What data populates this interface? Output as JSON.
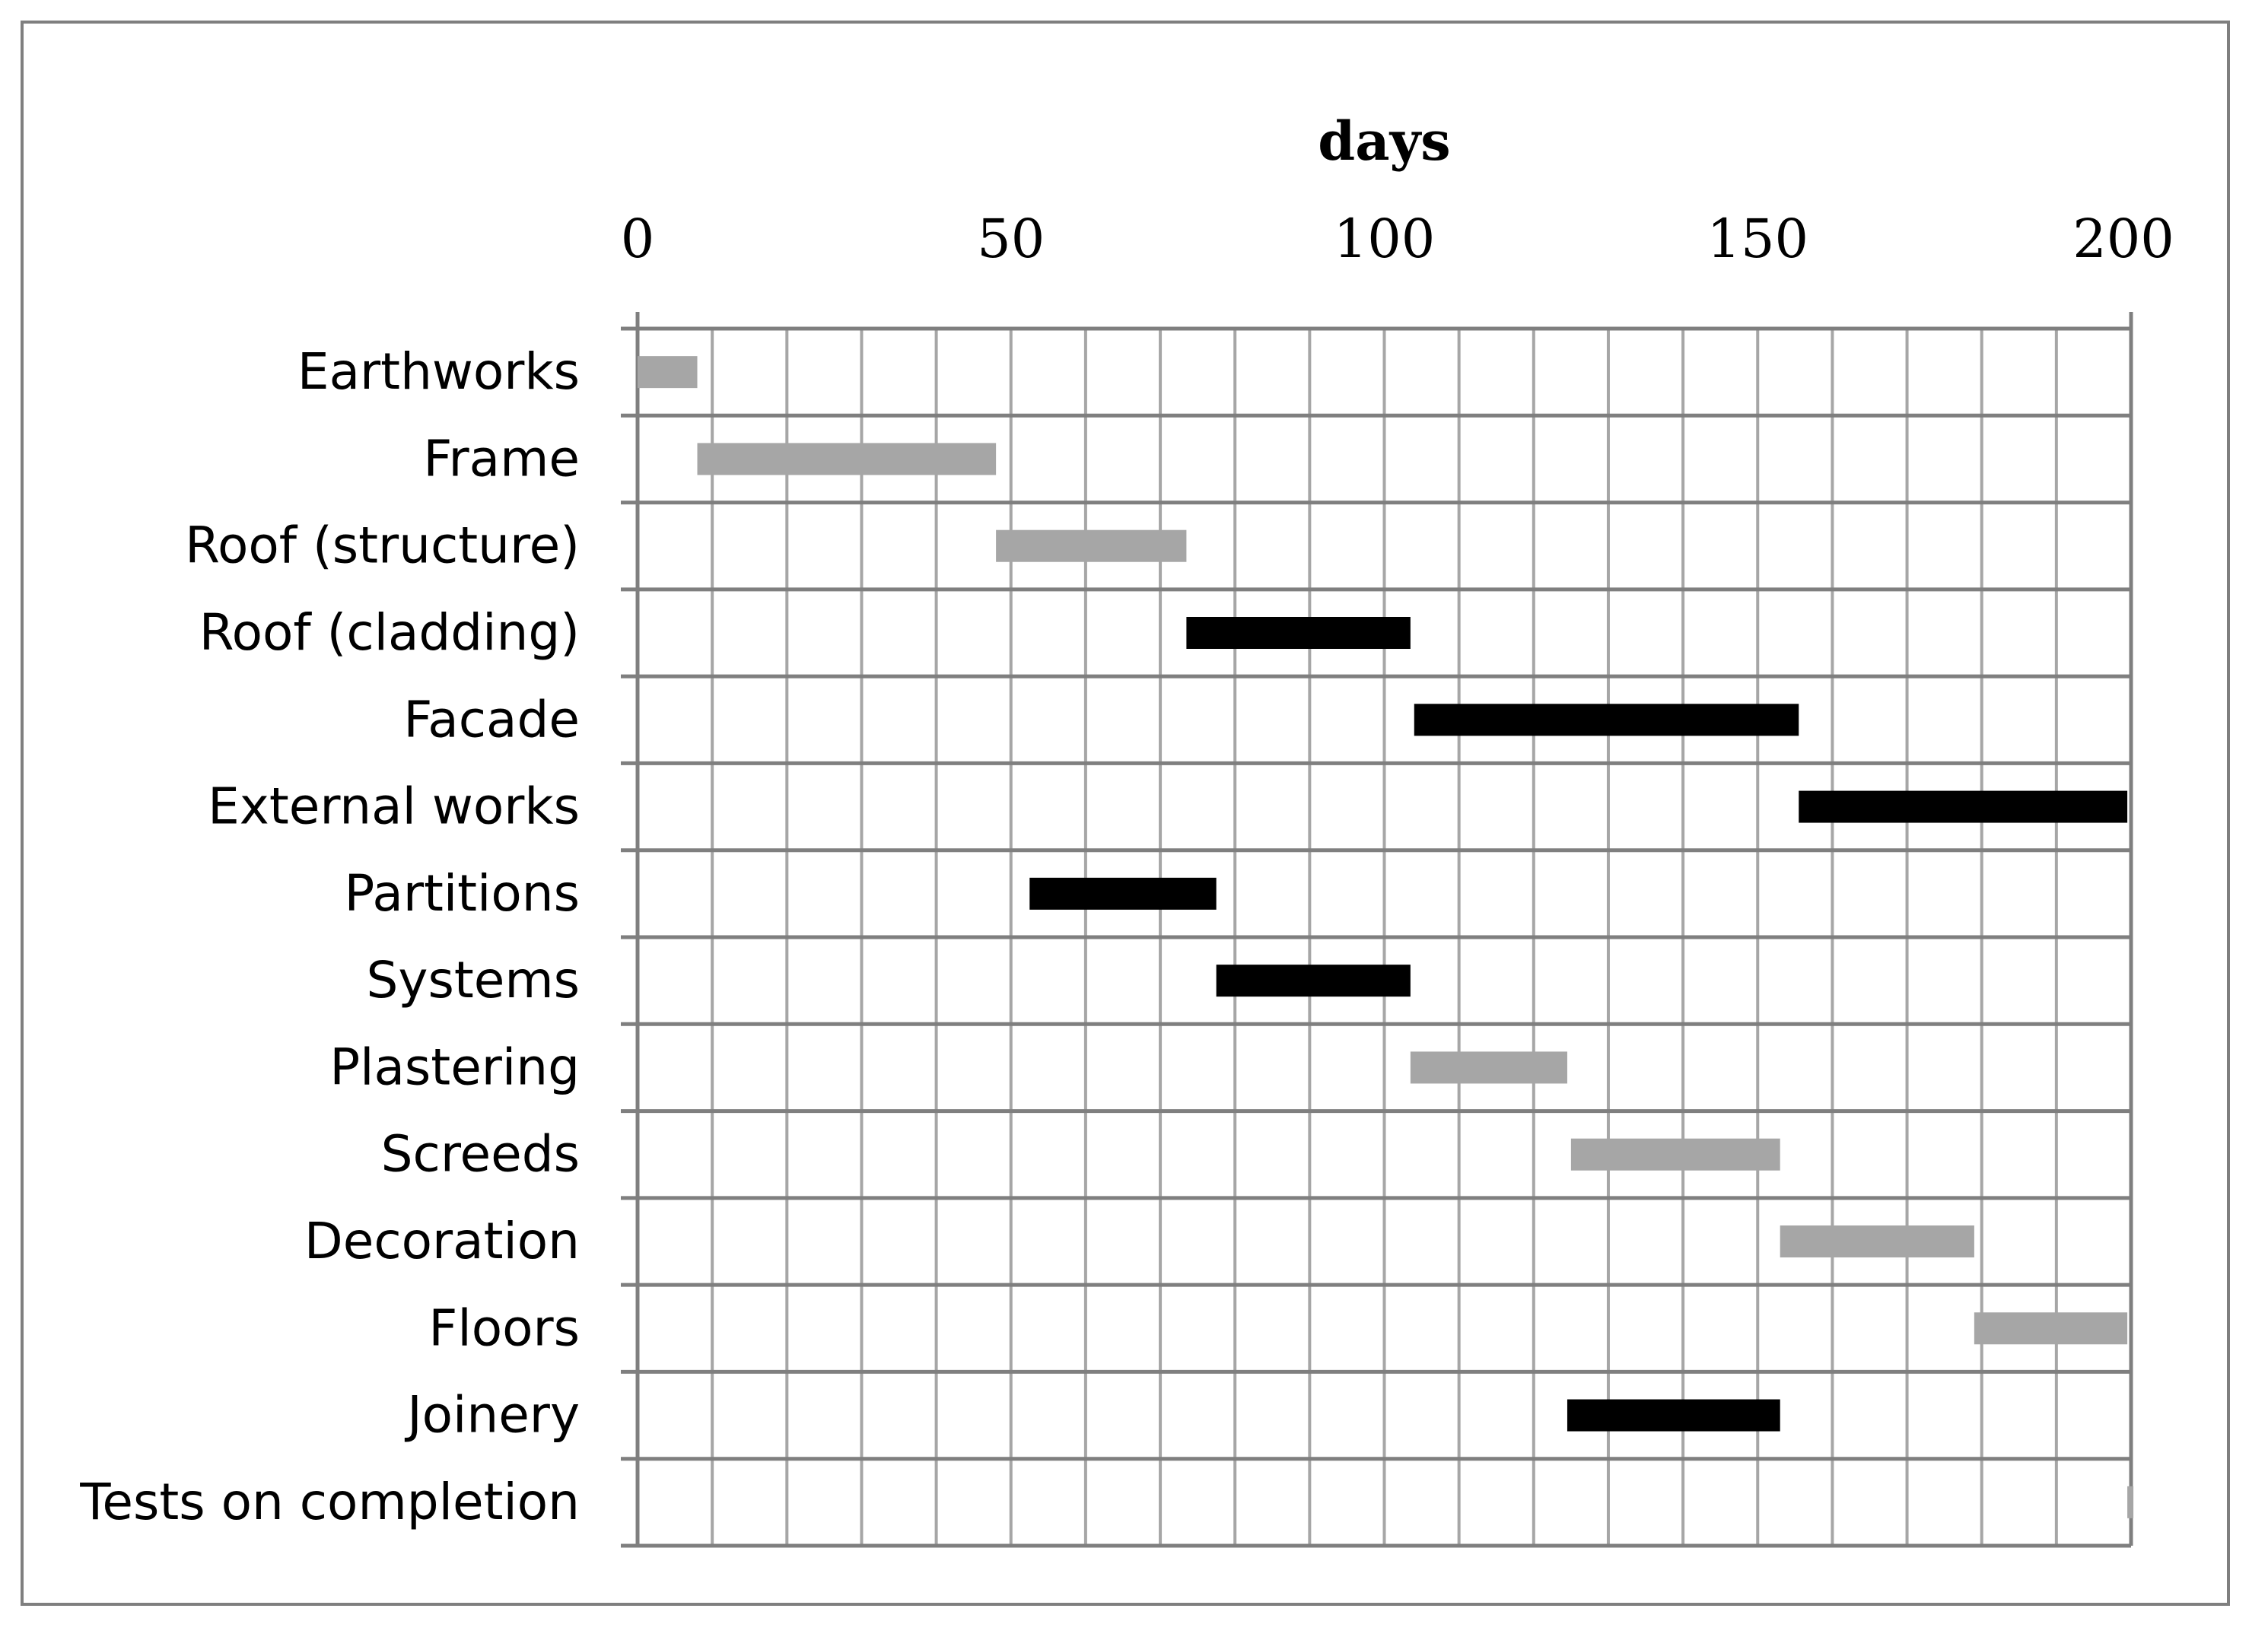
{
  "chart_data": {
    "type": "bar",
    "subtype": "gantt",
    "xlabel": "days",
    "xlim": [
      0,
      200
    ],
    "x_ticks": [
      0,
      50,
      100,
      150,
      200
    ],
    "x_minor_step": 10,
    "grid": true,
    "x_axis_position": "top",
    "legend": "none",
    "categories": [
      "Earthworks",
      "Frame",
      "Roof (structure)",
      "Roof (cladding)",
      "Facade",
      "External works",
      "Partitions",
      "Systems",
      "Plastering",
      "Screeds",
      "Decoration",
      "Floors",
      "Joinery",
      "Tests on completion"
    ],
    "tasks": [
      {
        "name": "Earthworks",
        "start": 0,
        "end": 8,
        "color": "#a6a6a6"
      },
      {
        "name": "Frame",
        "start": 8,
        "end": 48,
        "color": "#a6a6a6"
      },
      {
        "name": "Roof (structure)",
        "start": 48,
        "end": 73.5,
        "color": "#a6a6a6"
      },
      {
        "name": "Roof (cladding)",
        "start": 73.5,
        "end": 103.5,
        "color": "#000000"
      },
      {
        "name": "Facade",
        "start": 104,
        "end": 155.5,
        "color": "#000000"
      },
      {
        "name": "External works",
        "start": 155.5,
        "end": 199.5,
        "color": "#000000"
      },
      {
        "name": "Partitions",
        "start": 52.5,
        "end": 77.5,
        "color": "#000000"
      },
      {
        "name": "Systems",
        "start": 77.5,
        "end": 103.5,
        "color": "#000000"
      },
      {
        "name": "Plastering",
        "start": 103.5,
        "end": 124.5,
        "color": "#a6a6a6"
      },
      {
        "name": "Screeds",
        "start": 125,
        "end": 153,
        "color": "#a6a6a6"
      },
      {
        "name": "Decoration",
        "start": 153,
        "end": 179,
        "color": "#a6a6a6"
      },
      {
        "name": "Floors",
        "start": 179,
        "end": 199.5,
        "color": "#a6a6a6"
      },
      {
        "name": "Joinery",
        "start": 124.5,
        "end": 153,
        "color": "#000000"
      },
      {
        "name": "Tests on completion",
        "start": 199.5,
        "end": 200,
        "color": "#a6a6a6"
      }
    ],
    "colors": {
      "grid": "#a6a6a6",
      "row_line": "#7f7f7f",
      "frame": "#7f7f7f"
    }
  }
}
